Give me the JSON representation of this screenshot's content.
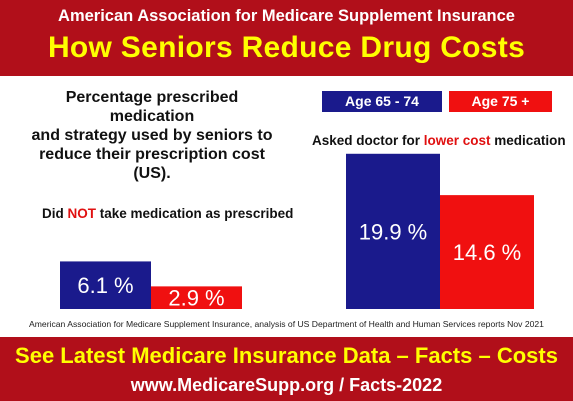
{
  "header": {
    "organization": "American Association for Medicare Supplement Insurance",
    "title": "How Seniors Reduce Drug Costs"
  },
  "intro": {
    "line1": "Percentage prescribed medication",
    "line2": "and strategy used by seniors to",
    "line3": "reduce their prescription cost (US)."
  },
  "legend": [
    {
      "label": "Age 65 - 74",
      "color": "#1a1a8c"
    },
    {
      "label": "Age 75 +",
      "color": "#f01010"
    }
  ],
  "chart_titles": {
    "chart1": {
      "before": "Did ",
      "highlight": "NOT",
      "after": " take medication as prescribed"
    },
    "chart2": {
      "before": "Asked doctor for ",
      "highlight": "lower cost",
      "after": " medication"
    }
  },
  "chart_data": [
    {
      "type": "bar",
      "title": "Did NOT take medication as prescribed",
      "categories": [
        "Age 65 - 74",
        "Age 75 +"
      ],
      "values": [
        6.1,
        2.9
      ],
      "value_labels": [
        "6.1 %",
        "2.9 %"
      ],
      "colors": [
        "#1a1a8c",
        "#f01010"
      ],
      "ylim": [
        0,
        22
      ],
      "grid": false
    },
    {
      "type": "bar",
      "title": "Asked doctor for lower cost medication",
      "categories": [
        "Age 65 - 74",
        "Age 75 +"
      ],
      "values": [
        19.9,
        14.6
      ],
      "value_labels": [
        "19.9 %",
        "14.6 %"
      ],
      "colors": [
        "#1a1a8c",
        "#f01010"
      ],
      "ylim": [
        0,
        22
      ],
      "grid": false
    }
  ],
  "source": "American Association for Medicare Supplement Insurance, analysis of US Department of Health and Human Services reports Nov 2021",
  "footer": {
    "cta": "See Latest Medicare Insurance Data – Facts – Costs",
    "url": "www.MedicareSupp.org / Facts-2022"
  }
}
